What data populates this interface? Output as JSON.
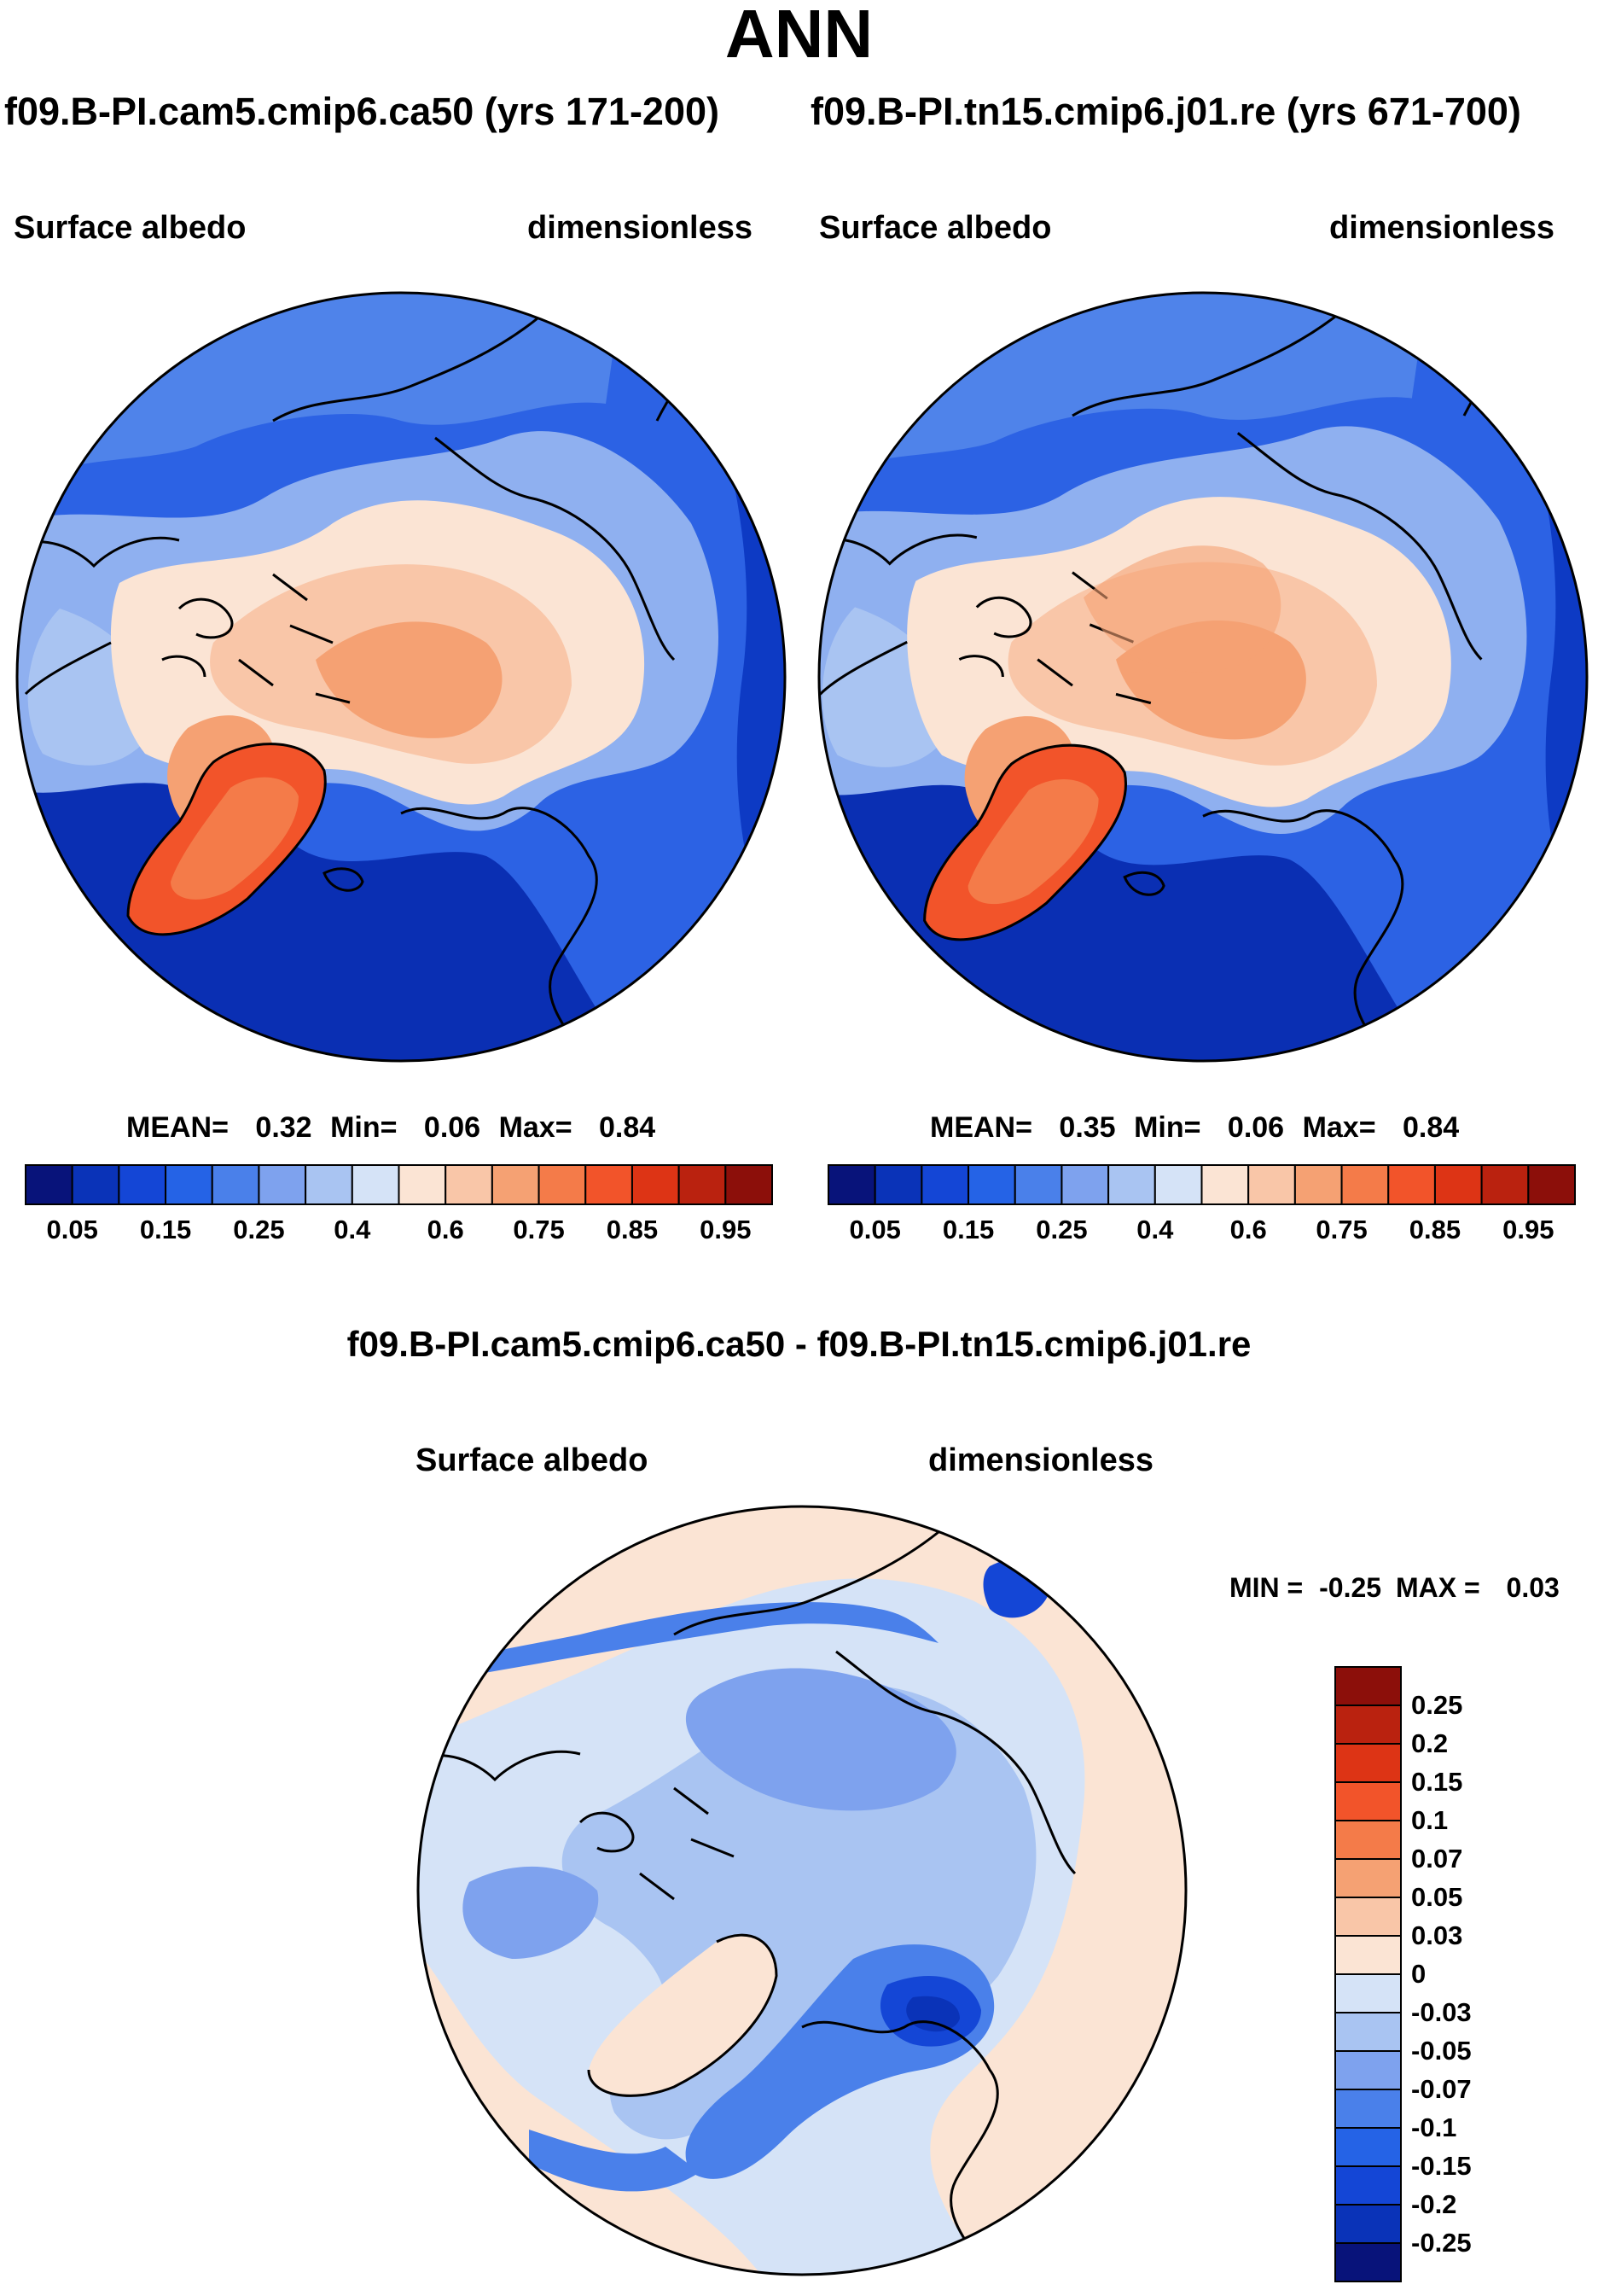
{
  "title": "ANN",
  "panels": [
    {
      "case_title": "f09.B-PI.cam5.cmip6.ca50 (yrs 171-200)",
      "variable": "Surface albedo",
      "units": "dimensionless",
      "stats": {
        "mean_label": "MEAN=",
        "mean": "0.32",
        "min_label": "Min=",
        "min": "0.06",
        "max_label": "Max=",
        "max": "0.84"
      }
    },
    {
      "case_title": "f09.B-PI.tn15.cmip6.j01.re (yrs 671-700)",
      "variable": "Surface albedo",
      "units": "dimensionless",
      "stats": {
        "mean_label": "MEAN=",
        "mean": "0.35",
        "min_label": "Min=",
        "min": "0.06",
        "max_label": "Max=",
        "max": "0.84"
      }
    }
  ],
  "abs_colorbar": {
    "colors": [
      "#08137a",
      "#0a33b8",
      "#1446d6",
      "#2563e6",
      "#4a80ea",
      "#7ea2ee",
      "#a9c4f2",
      "#d5e3f7",
      "#fbe4d4",
      "#f9c6a8",
      "#f5a173",
      "#f47b49",
      "#f2542a",
      "#dd3415",
      "#ba220f",
      "#8c0f0a"
    ],
    "ticks": [
      "0.05",
      "0.15",
      "0.25",
      "0.4",
      "0.6",
      "0.75",
      "0.85",
      "0.95"
    ]
  },
  "difference": {
    "title": "f09.B-PI.cam5.cmip6.ca50 - f09.B-PI.tn15.cmip6.j01.re",
    "variable": "Surface albedo",
    "units": "dimensionless",
    "stats": {
      "min_label": "MIN =",
      "min": "-0.25",
      "max_label": "MAX =",
      "max": "0.03"
    },
    "colorbar": {
      "colors": [
        "#8c0f0a",
        "#ba220f",
        "#dd3415",
        "#f2542a",
        "#f47b49",
        "#f5a173",
        "#f9c6a8",
        "#fbe4d4",
        "#d5e3f7",
        "#a9c4f2",
        "#7ea2ee",
        "#4a80ea",
        "#2563e6",
        "#1446d6",
        "#0a33b8",
        "#08137a"
      ],
      "ticks": [
        "0.25",
        "0.2",
        "0.15",
        "0.1",
        "0.07",
        "0.05",
        "0.03",
        "0",
        "-0.03",
        "-0.05",
        "-0.07",
        "-0.1",
        "-0.15",
        "-0.2",
        "-0.25"
      ]
    }
  }
}
